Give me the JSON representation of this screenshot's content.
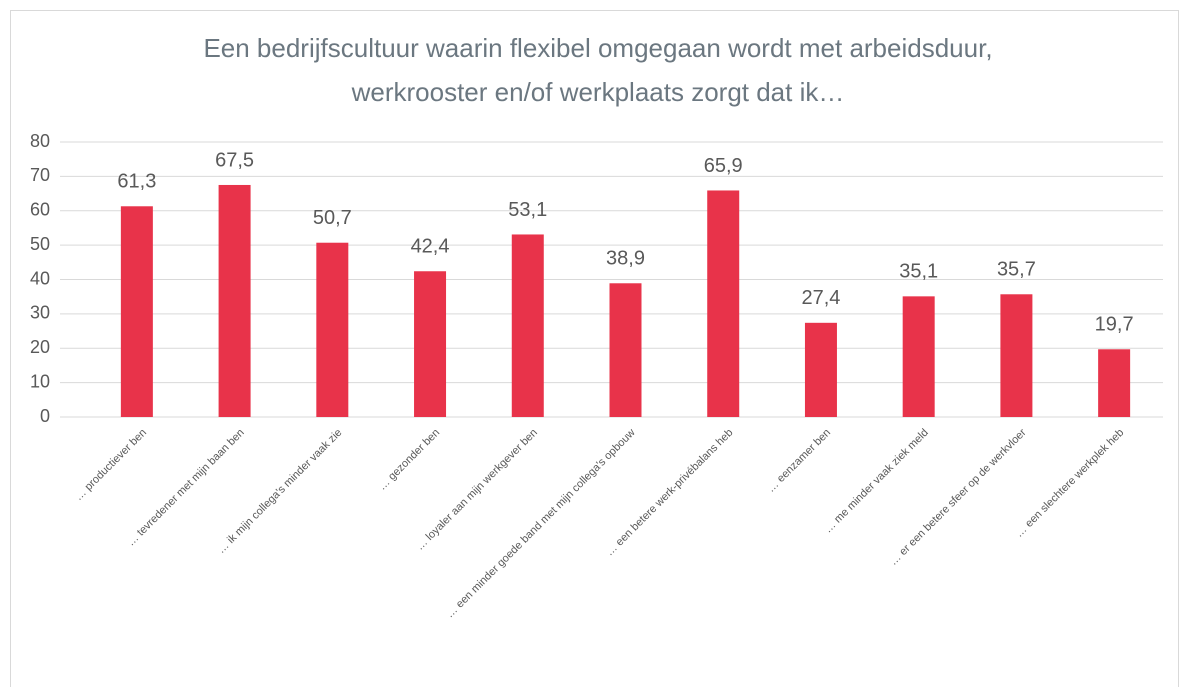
{
  "chart_data": {
    "type": "bar",
    "title": [
      "Een bedrijfscultuur waarin flexibel omgegaan wordt met arbeidsduur,",
      "werkrooster en/of werkplaats zorgt dat ik…"
    ],
    "categories": [
      "… productiever ben",
      "… tevredener met mijn baan ben",
      "… ik mijn collega's minder vaak zie",
      "… gezonder ben",
      "… loyaler aan mijn werkgever ben",
      "… een minder goede band met mijn collega's opbouw",
      "… een betere werk-privébalans heb",
      "… eenzamer ben",
      "… me minder vaak ziek meld",
      "… er een betere sfeer op de werkvloer",
      "… een slechtere werkplek heb"
    ],
    "values": [
      61.3,
      67.5,
      50.7,
      42.4,
      53.1,
      38.9,
      65.9,
      27.4,
      35.1,
      35.7,
      19.7
    ],
    "value_labels": [
      "61,3",
      "67,5",
      "50,7",
      "42,4",
      "53,1",
      "38,9",
      "65,9",
      "27,4",
      "35,1",
      "35,7",
      "19,7"
    ],
    "color": "#e8334a",
    "ylim": [
      0,
      80
    ],
    "yticks": [
      0,
      10,
      20,
      30,
      40,
      50,
      60,
      70,
      80
    ],
    "grid": true
  }
}
